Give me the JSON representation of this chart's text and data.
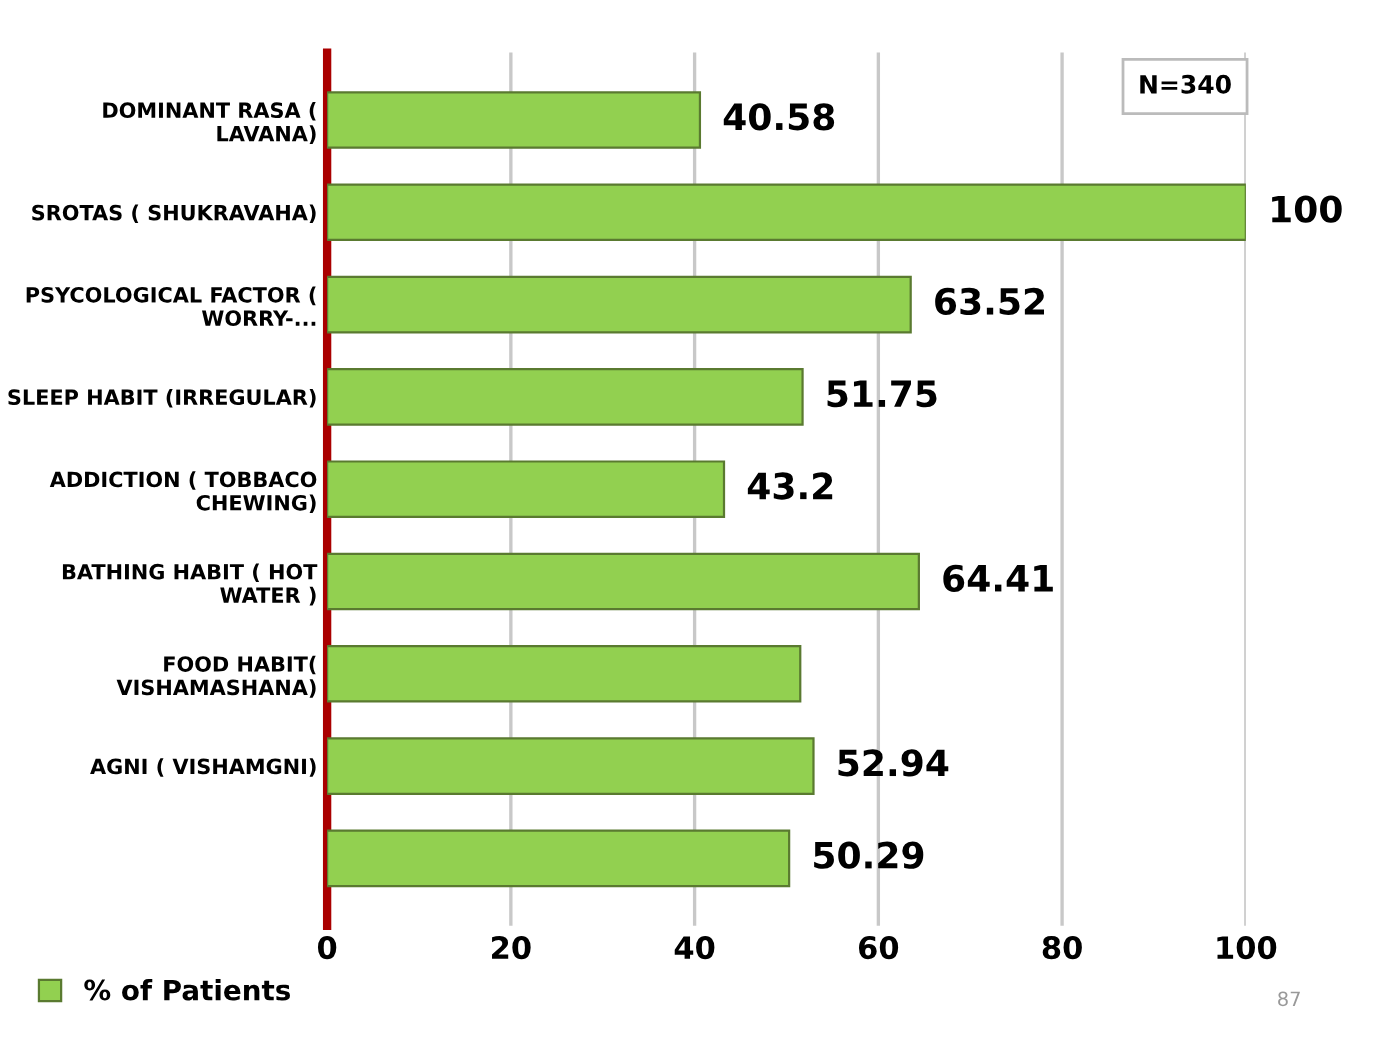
{
  "chart_data": {
    "type": "bar",
    "orientation": "horizontal",
    "categories": [
      "DOMINANT RASA ( LAVANA)",
      "SROTAS ( SHUKRAVAHA)",
      "PSYCOLOGICAL FACTOR ( WORRY-...",
      "SLEEP HABIT (IRREGULAR)",
      "ADDICTION ( TOBBACO CHEWING)",
      "BATHING HABIT ( HOT WATER )",
      "FOOD HABIT( VISHAMASHANA)",
      "AGNI ( VISHAMGNI)",
      null
    ],
    "series": [
      {
        "name": "% of Patients",
        "color": "#92d050",
        "values": [
          40.58,
          100,
          63.52,
          51.75,
          43.2,
          64.41,
          51.5,
          52.94,
          50.29
        ],
        "value_labels": [
          "40.58",
          "100",
          "63.52",
          "51.75",
          "43.2",
          "64.41",
          null,
          "52.94",
          "50.29"
        ]
      }
    ],
    "xlim": [
      0,
      100
    ],
    "xticks": [
      0,
      20,
      40,
      60,
      80,
      100
    ],
    "grid": "x",
    "legend": "bottom left",
    "annotations": [
      "N=340",
      "87"
    ]
  }
}
